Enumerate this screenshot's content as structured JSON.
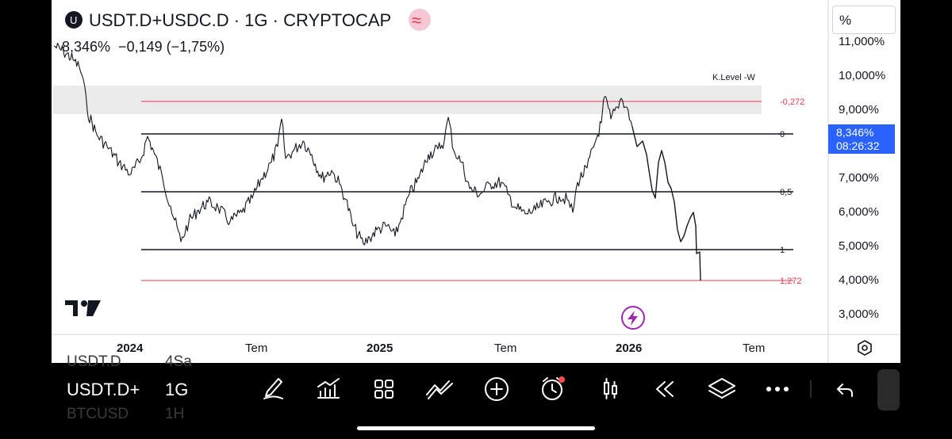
{
  "header": {
    "symbol_title": "USDT.D+USDC.D · 1G · CRYPTOCAP",
    "logo_letter": "U",
    "wave_icon": "≈",
    "price_line": "8,346%  −0,149 (−1,75%)"
  },
  "scale_button_label": "%",
  "price_axis": {
    "labels": [
      "11,000%",
      "10,000%",
      "9,000%",
      "7,000%",
      "6,000%",
      "5,000%",
      "4,000%",
      "3,000%"
    ]
  },
  "current_price": {
    "value": "8,346%",
    "countdown": "08:26:32"
  },
  "time_axis": {
    "labels": [
      "2024",
      "Tem",
      "2025",
      "Tem",
      "2026",
      "Tem"
    ]
  },
  "fib_levels": {
    "title": "K.Level -W",
    "levels": [
      "-0,272",
      "0",
      "0,5",
      "1",
      "1,272"
    ],
    "colors": {
      "extension": "#e53950",
      "main": "#131722",
      "zone": "#ebebeb"
    }
  },
  "toolbar": {
    "symbol": "USDT.D+",
    "interval": "1G",
    "ghost_above_symbol": "USDT.D",
    "ghost_above_interval": "4Sa",
    "ghost_below_symbol": "BTCUSD",
    "ghost_below_interval": "1H",
    "icons": [
      "pen-icon",
      "indicators-icon",
      "layouts-icon",
      "add-icon",
      "alert-icon",
      "candles-icon",
      "replay-icon",
      "layers-icon",
      "more-icon",
      "undo-icon"
    ]
  },
  "colors": {
    "accent": "#2962ff",
    "lightning": "#9c27b0",
    "price_line": "#131722"
  }
}
